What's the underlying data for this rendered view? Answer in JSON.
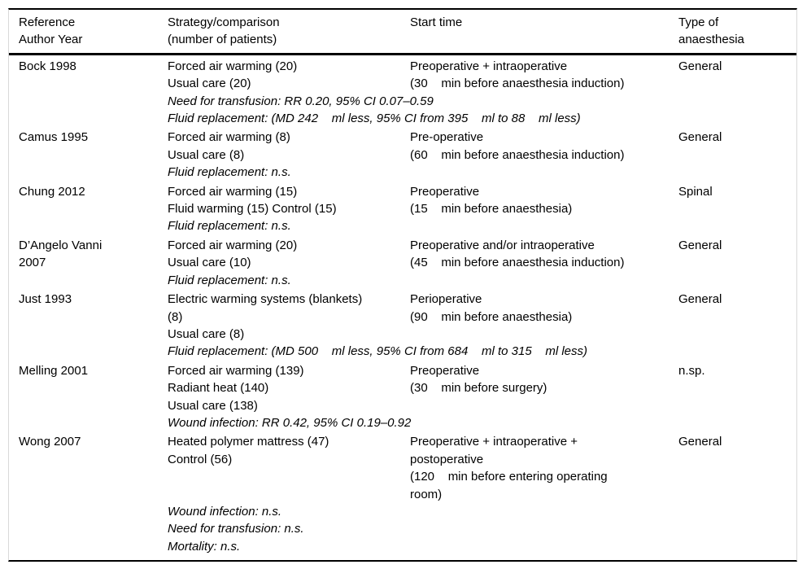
{
  "table": {
    "headers": {
      "reference": "Reference\nAuthor Year",
      "strategy": "Strategy/comparison\n(number of patients)",
      "start_time": "Start time",
      "anaesthesia": "Type of\nanaesthesia"
    },
    "rows": [
      {
        "reference": "Bock 1998",
        "strategy": "Forced air warming (20)\nUsual care (20)",
        "start_time": "Preoperative + intraoperative\n(30    min before anaesthesia induction)",
        "anaesthesia": "General",
        "outcomes": "Need for transfusion: RR 0.20, 95% CI 0.07–0.59\nFluid replacement: (MD 242    ml less, 95% CI from 395    ml to 88    ml less)"
      },
      {
        "reference": "Camus 1995",
        "strategy": "Forced air warming (8)\nUsual care (8)",
        "start_time": "Pre-operative\n(60    min before anaesthesia induction)",
        "anaesthesia": "General",
        "outcomes": "Fluid replacement: n.s."
      },
      {
        "reference": "Chung 2012",
        "strategy": "Forced air warming (15)\nFluid warming (15) Control (15)",
        "start_time": "Preoperative\n(15    min before anaesthesia)",
        "anaesthesia": "Spinal",
        "outcomes": "Fluid replacement: n.s."
      },
      {
        "reference": "D’Angelo Vanni\n2007",
        "strategy": "Forced air warming (20)\nUsual care (10)",
        "start_time": "Preoperative and/or intraoperative\n(45    min before anaesthesia induction)",
        "anaesthesia": "General",
        "outcomes": "Fluid replacement: n.s."
      },
      {
        "reference": "Just 1993",
        "strategy": "Electric warming systems (blankets)\n(8)\nUsual care (8)",
        "start_time": "Perioperative\n(90    min before anaesthesia)",
        "anaesthesia": "General",
        "outcomes": "Fluid replacement: (MD 500    ml less, 95% CI from 684    ml to 315    ml less)"
      },
      {
        "reference": "Melling 2001",
        "strategy": "Forced air warming (139)\nRadiant heat (140)\nUsual care (138)",
        "start_time": "Preoperative\n(30    min before surgery)",
        "anaesthesia": "n.sp.",
        "outcomes": "Wound infection: RR 0.42, 95% CI 0.19–0.92"
      },
      {
        "reference": "Wong 2007",
        "strategy": "Heated polymer mattress (47)\nControl (56)",
        "start_time": "Preoperative + intraoperative +\npostoperative\n(120    min before entering operating\nroom)",
        "anaesthesia": "General",
        "outcomes": "Wound infection: n.s.\nNeed for transfusion: n.s.\nMortality: n.s."
      }
    ]
  }
}
